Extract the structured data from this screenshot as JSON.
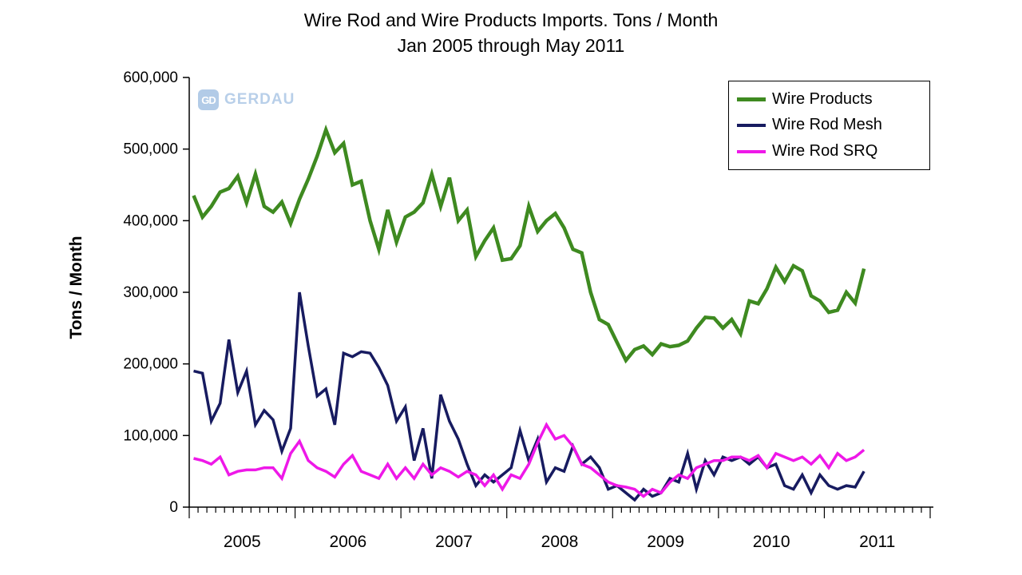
{
  "title_line1": "Wire Rod and Wire Products Imports. Tons / Month",
  "title_line2": "Jan 2005 through May 2011",
  "watermark": {
    "icon_text": "GD",
    "text": "GERDAU",
    "color": "#b5cde8"
  },
  "axis_color": "#000000",
  "chart_data": {
    "type": "line",
    "title": "Wire Rod and Wire Products Imports. Tons / Month — Jan 2005 through May 2011",
    "xlabel": "",
    "ylabel": "Tons / Month",
    "ylim": [
      0,
      600000
    ],
    "ytick_step": 100000,
    "grid": false,
    "legend_position": "top-right",
    "x_years": [
      "2005",
      "2006",
      "2007",
      "2008",
      "2009",
      "2010",
      "2011"
    ],
    "x_axis_months_total": 84,
    "x_start": "Jan 2005",
    "x_end": "May 2011",
    "values_unit": "tons/month",
    "series": [
      {
        "name": "Wire Products",
        "color": "#3E8A20",
        "width": 4.5,
        "values": [
          435000,
          405000,
          420000,
          440000,
          445000,
          462000,
          425000,
          465000,
          420000,
          412000,
          426000,
          396000,
          430000,
          458000,
          490000,
          527000,
          495000,
          508000,
          450000,
          455000,
          400000,
          360000,
          415000,
          370000,
          405000,
          412000,
          425000,
          465000,
          420000,
          460000,
          400000,
          415000,
          350000,
          372000,
          390000,
          345000,
          347000,
          365000,
          420000,
          385000,
          400000,
          410000,
          390000,
          360000,
          355000,
          300000,
          262000,
          255000,
          230000,
          205000,
          220000,
          225000,
          213000,
          228000,
          224000,
          226000,
          232000,
          250000,
          265000,
          264000,
          250000,
          262000,
          242000,
          288000,
          284000,
          305000,
          335000,
          315000,
          337000,
          330000,
          295000,
          288000,
          272000,
          275000,
          300000,
          285000,
          333000
        ]
      },
      {
        "name": "Wire Rod Mesh",
        "color": "#171B60",
        "width": 3.5,
        "values": [
          190000,
          187000,
          120000,
          145000,
          234000,
          160000,
          190000,
          115000,
          135000,
          122000,
          78000,
          110000,
          300000,
          225000,
          155000,
          165000,
          115000,
          215000,
          210000,
          217000,
          215000,
          195000,
          170000,
          120000,
          140000,
          65000,
          110000,
          40000,
          157000,
          120000,
          95000,
          60000,
          30000,
          45000,
          35000,
          45000,
          55000,
          107000,
          65000,
          95000,
          35000,
          55000,
          50000,
          85000,
          60000,
          70000,
          55000,
          25000,
          30000,
          20000,
          10000,
          25000,
          15000,
          20000,
          40000,
          35000,
          75000,
          25000,
          65000,
          45000,
          70000,
          65000,
          70000,
          60000,
          70000,
          55000,
          60000,
          30000,
          25000,
          45000,
          20000,
          45000,
          30000,
          25000,
          30000,
          28000,
          50000
        ]
      },
      {
        "name": "Wire Rod SRQ",
        "color": "#EE18E8",
        "width": 3.5,
        "values": [
          68000,
          65000,
          60000,
          70000,
          45000,
          50000,
          52000,
          52000,
          55000,
          55000,
          40000,
          75000,
          92000,
          65000,
          55000,
          50000,
          42000,
          60000,
          72000,
          50000,
          45000,
          40000,
          60000,
          40000,
          55000,
          40000,
          60000,
          45000,
          55000,
          50000,
          42000,
          50000,
          45000,
          30000,
          45000,
          25000,
          45000,
          40000,
          60000,
          90000,
          115000,
          95000,
          100000,
          85000,
          60000,
          55000,
          45000,
          35000,
          30000,
          28000,
          25000,
          15000,
          25000,
          20000,
          35000,
          45000,
          40000,
          55000,
          60000,
          65000,
          65000,
          70000,
          70000,
          65000,
          72000,
          55000,
          75000,
          70000,
          65000,
          70000,
          60000,
          72000,
          55000,
          75000,
          65000,
          70000,
          80000
        ]
      }
    ]
  }
}
